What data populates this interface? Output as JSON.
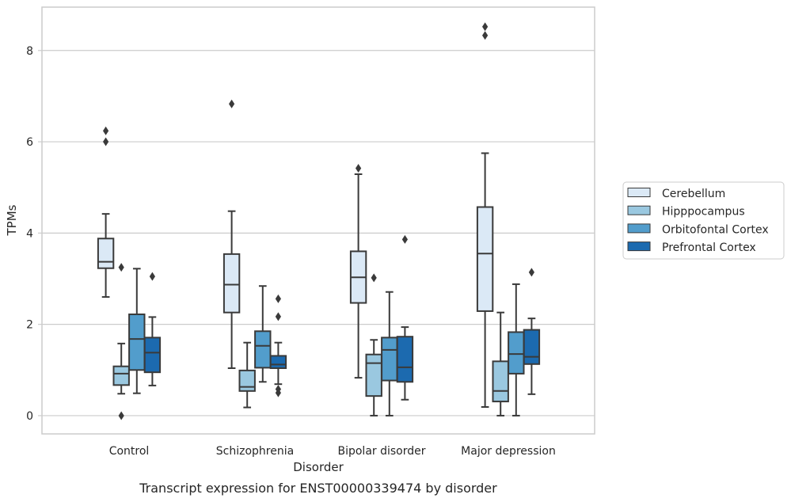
{
  "chart_data": {
    "type": "box",
    "caption": "Transcript expression for ENST00000339474 by disorder",
    "xlabel": "Disorder",
    "ylabel": "TPMs",
    "ylim": [
      -0.4,
      8.95
    ],
    "yticks": [
      0,
      2,
      4,
      6,
      8
    ],
    "grid": "horizontal",
    "legend_position": "right",
    "categories": [
      "Control",
      "Schizophrenia",
      "Bipolar disorder",
      "Major depression"
    ],
    "series": [
      {
        "name": "Cerebellum",
        "color": "#dbe9f6",
        "boxes": [
          {
            "whislo": 2.6,
            "q1": 3.23,
            "med": 3.37,
            "q3": 3.88,
            "whishi": 4.42,
            "fliers": [
              6.0,
              6.24
            ]
          },
          {
            "whislo": 1.04,
            "q1": 2.26,
            "med": 2.87,
            "q3": 3.54,
            "whishi": 4.48,
            "fliers": [
              6.83
            ]
          },
          {
            "whislo": 0.83,
            "q1": 2.47,
            "med": 3.03,
            "q3": 3.6,
            "whishi": 5.29,
            "fliers": [
              5.42
            ]
          },
          {
            "whislo": 0.19,
            "q1": 2.29,
            "med": 3.55,
            "q3": 4.57,
            "whishi": 5.75,
            "fliers": [
              8.33,
              8.52
            ]
          }
        ]
      },
      {
        "name": "Hipppocampus",
        "color": "#9ac8e0",
        "boxes": [
          {
            "whislo": 0.48,
            "q1": 0.67,
            "med": 0.92,
            "q3": 1.08,
            "whishi": 1.58,
            "fliers": [
              0.0,
              3.25
            ]
          },
          {
            "whislo": 0.18,
            "q1": 0.54,
            "med": 0.63,
            "q3": 0.99,
            "whishi": 1.6,
            "fliers": []
          },
          {
            "whislo": 0.0,
            "q1": 0.43,
            "med": 1.15,
            "q3": 1.34,
            "whishi": 1.66,
            "fliers": [
              3.02
            ]
          },
          {
            "whislo": 0.0,
            "q1": 0.31,
            "med": 0.54,
            "q3": 1.19,
            "whishi": 2.26,
            "fliers": []
          }
        ]
      },
      {
        "name": "Orbitofontal Cortex",
        "color": "#529dcc",
        "boxes": [
          {
            "whislo": 0.49,
            "q1": 1.0,
            "med": 1.68,
            "q3": 2.22,
            "whishi": 3.22,
            "fliers": []
          },
          {
            "whislo": 0.74,
            "q1": 1.05,
            "med": 1.53,
            "q3": 1.85,
            "whishi": 2.84,
            "fliers": []
          },
          {
            "whislo": 0.0,
            "q1": 0.77,
            "med": 1.44,
            "q3": 1.71,
            "whishi": 2.71,
            "fliers": []
          },
          {
            "whislo": 0.0,
            "q1": 0.92,
            "med": 1.35,
            "q3": 1.83,
            "whishi": 2.88,
            "fliers": []
          }
        ]
      },
      {
        "name": "Prefrontal Cortex",
        "color": "#1c6aaf",
        "boxes": [
          {
            "whislo": 0.66,
            "q1": 0.95,
            "med": 1.38,
            "q3": 1.71,
            "whishi": 2.16,
            "fliers": [
              3.05
            ]
          },
          {
            "whislo": 0.69,
            "q1": 1.04,
            "med": 1.12,
            "q3": 1.31,
            "whishi": 1.6,
            "fliers": [
              0.5,
              0.58,
              2.17,
              2.56
            ]
          },
          {
            "whislo": 0.35,
            "q1": 0.74,
            "med": 1.06,
            "q3": 1.73,
            "whishi": 1.94,
            "fliers": [
              3.86
            ]
          },
          {
            "whislo": 0.47,
            "q1": 1.13,
            "med": 1.29,
            "q3": 1.88,
            "whishi": 2.13,
            "fliers": [
              3.14
            ]
          }
        ]
      }
    ]
  }
}
